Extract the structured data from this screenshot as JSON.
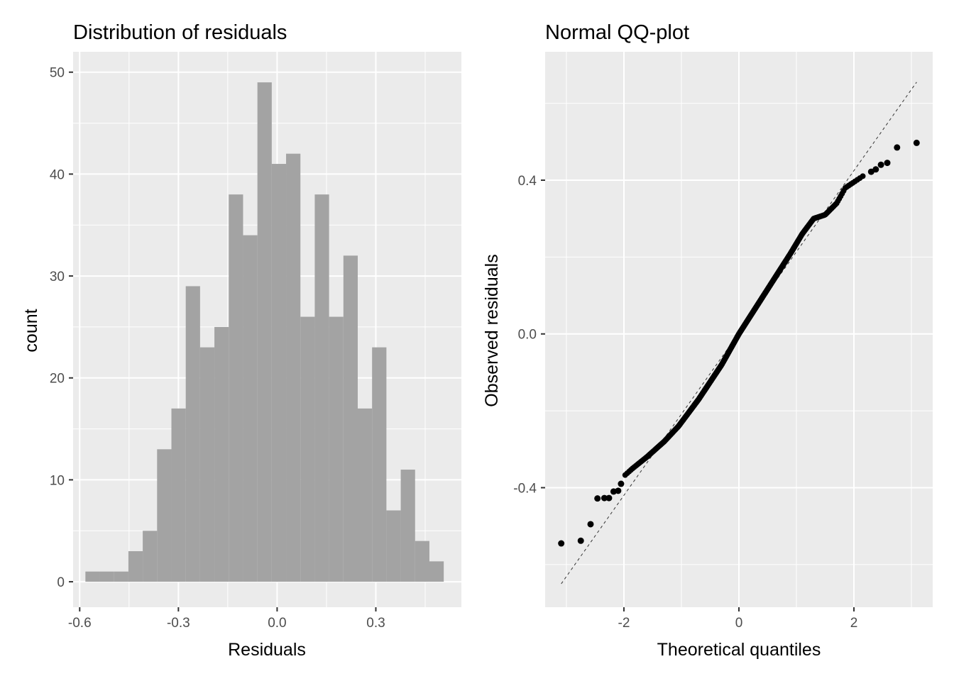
{
  "chart_data": [
    {
      "type": "bar",
      "subtype": "histogram",
      "title": "Distribution of residuals",
      "xlabel": "Residuals",
      "ylabel": "count",
      "xlim": [
        -0.62,
        0.56
      ],
      "ylim": [
        -2.5,
        52
      ],
      "x_ticks": [
        -0.6,
        -0.3,
        0.0,
        0.3
      ],
      "x_tick_labels": [
        "-0.6",
        "-0.3",
        "0.0",
        "0.3"
      ],
      "y_ticks": [
        0,
        10,
        20,
        30,
        40,
        50
      ],
      "y_tick_labels": [
        "0",
        "10",
        "20",
        "30",
        "40",
        "50"
      ],
      "bin_start": -0.5826,
      "bin_width": 0.04356,
      "values": [
        1,
        1,
        1,
        3,
        5,
        13,
        17,
        29,
        23,
        25,
        38,
        34,
        49,
        41,
        42,
        26,
        38,
        26,
        32,
        17,
        23,
        7,
        11,
        4,
        2
      ],
      "grid": true,
      "fill_color": "#a0a0a0",
      "panel_color": "#ebebeb"
    },
    {
      "type": "scatter",
      "subtype": "qq-plot",
      "title": "Normal QQ-plot",
      "xlabel": "Theoretical quantiles",
      "ylabel": "Observed residuals",
      "xlim": [
        -3.37,
        3.37
      ],
      "ylim": [
        -0.711,
        0.734
      ],
      "x_ticks": [
        -2,
        0,
        2
      ],
      "x_tick_labels": [
        "-2",
        "0",
        "2"
      ],
      "y_ticks": [
        -0.4,
        0.0,
        0.4
      ],
      "y_tick_labels": [
        "-0.4",
        "0.0",
        "0.4"
      ],
      "n_points": 500,
      "curve_control_points": {
        "theoretical": [
          -2.0,
          -1.85,
          -1.6,
          -1.3,
          -1.05,
          -0.7,
          -0.3,
          0.0,
          0.3,
          0.6,
          0.9,
          1.1,
          1.3,
          1.5,
          1.7,
          1.85,
          2.0,
          2.2
        ],
        "observed": [
          -0.37,
          -0.35,
          -0.32,
          -0.28,
          -0.24,
          -0.17,
          -0.08,
          0.0,
          0.07,
          0.14,
          0.21,
          0.26,
          0.3,
          0.31,
          0.34,
          0.38,
          0.395,
          0.415
        ]
      },
      "tail_points": [
        {
          "x": -3.09,
          "y": -0.545
        },
        {
          "x": -2.75,
          "y": -0.538
        },
        {
          "x": -2.58,
          "y": -0.495
        },
        {
          "x": -2.46,
          "y": -0.428
        },
        {
          "x": -2.34,
          "y": -0.427
        },
        {
          "x": -2.26,
          "y": -0.427
        },
        {
          "x": -2.18,
          "y": -0.41
        },
        {
          "x": -2.1,
          "y": -0.408
        },
        {
          "x": -2.05,
          "y": -0.39
        },
        {
          "x": 2.3,
          "y": 0.422
        },
        {
          "x": 2.38,
          "y": 0.428
        },
        {
          "x": 2.47,
          "y": 0.44
        },
        {
          "x": 2.58,
          "y": 0.445
        },
        {
          "x": 2.75,
          "y": 0.485
        },
        {
          "x": 3.09,
          "y": 0.497
        }
      ],
      "reference_line": {
        "x": [
          -3.09,
          3.09
        ],
        "y": [
          -0.65,
          0.655
        ],
        "style": "dashed"
      },
      "grid": true,
      "point_color": "#000000",
      "panel_color": "#ebebeb"
    }
  ]
}
